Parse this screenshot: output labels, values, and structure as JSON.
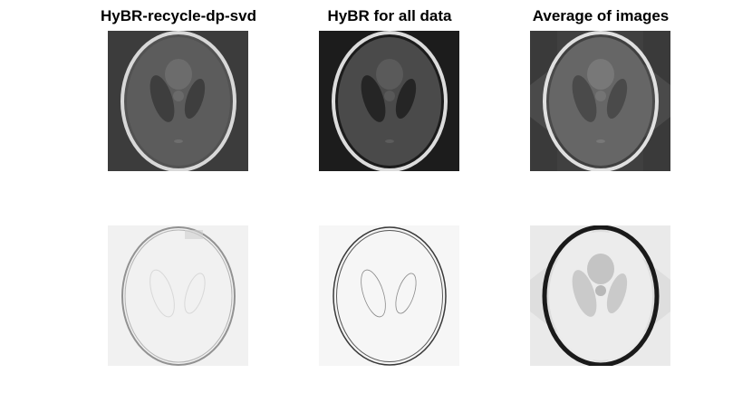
{
  "figure": {
    "titles": [
      "HyBR-recycle-dp-svd",
      "HyBR for all data",
      "Average of images"
    ]
  },
  "colors": {
    "title_text": "#000000",
    "background": "#ffffff"
  }
}
